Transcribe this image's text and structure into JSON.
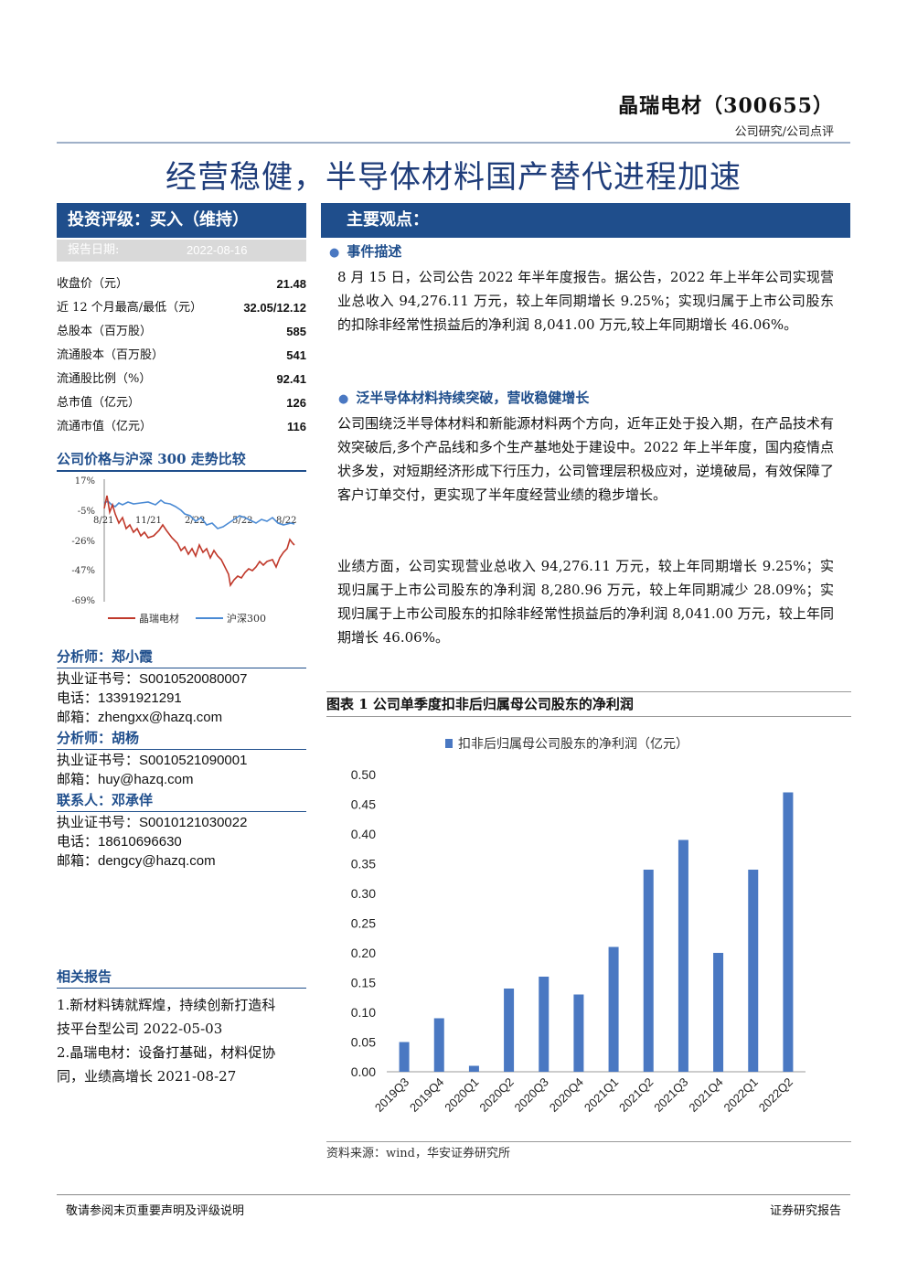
{
  "header": {
    "company": "晶瑞电材（300655）",
    "subtype": "公司研究/公司点评",
    "headline": "经营稳健，半导体材料国产替代进程加速"
  },
  "rating": {
    "label": "投资评级：买入（维持）",
    "date_label": "报告日期:",
    "date_value": "2022-08-16"
  },
  "stats": [
    {
      "label": "收盘价（元）",
      "value": "21.48"
    },
    {
      "label": "近 12 个月最高/最低（元）",
      "value": "32.05/12.12"
    },
    {
      "label": "总股本（百万股）",
      "value": "585"
    },
    {
      "label": "流通股本（百万股）",
      "value": "541"
    },
    {
      "label": "流通股比例（%）",
      "value": "92.41"
    },
    {
      "label": "总市值（亿元）",
      "value": "126"
    },
    {
      "label": "流通市值（亿元）",
      "value": "116"
    }
  ],
  "price_chart": {
    "title": "公司价格与沪深 300 走势比较",
    "y_ticks": [
      "17%",
      "-5%",
      "-26%",
      "-47%",
      "-69%"
    ],
    "x_ticks": [
      "8/21",
      "11/21",
      "2/22",
      "5/22",
      "8/22"
    ],
    "legend": [
      "晶瑞电材",
      "沪深300"
    ],
    "colors": {
      "stock": "#c0392b",
      "index": "#4a8ad4"
    }
  },
  "analysts": [
    {
      "title": "分析师：郑小霞",
      "lines": [
        "执业证书号：S0010520080007",
        "电话：13391921291",
        "邮箱：zhengxx@hazq.com"
      ]
    },
    {
      "title": "分析师：胡杨",
      "lines": [
        "执业证书号：S0010521090001",
        "邮箱：huy@hazq.com"
      ]
    },
    {
      "title": "联系人：邓承佯",
      "lines": [
        "执业证书号：S0010121030022",
        "电话：18610696630",
        "邮箱：dengcy@hazq.com"
      ]
    }
  ],
  "related": {
    "title": "相关报告",
    "lines": [
      "1.新材料铸就辉煌，持续创新打造科",
      "技平台型公司 2022-05-03",
      "2.晶瑞电材：设备打基础，材料促协",
      "同，业绩高增长 2021-08-27"
    ]
  },
  "main": {
    "title": "主要观点：",
    "sections": [
      {
        "heading": "事件描述",
        "paragraphs": [
          "8 月 15 日，公司公告 2022 年半年度报告。据公告，2022 年上半年公司实现营业总收入 94,276.11 万元，较上年同期增长 9.25%；实现归属于上市公司股东的扣除非经常性损益后的净利润 8,041.00 万元,较上年同期增长 46.06%。"
        ]
      },
      {
        "heading": "泛半导体材料持续突破，营收稳健增长",
        "paragraphs": [
          "公司围绕泛半导体材料和新能源材料两个方向，近年正处于投入期，在产品技术有效突破后,多个产品线和多个生产基地处于建设中。2022 年上半年度，国内疫情点状多发，对短期经济形成下行压力，公司管理层积极应对，逆境破局，有效保障了客户订单交付，更实现了半年度经营业绩的稳步增长。",
          "业绩方面，公司实现营业总收入 94,276.11 万元，较上年同期增长 9.25%；实现归属于上市公司股东的净利润 8,280.96 万元，较上年同期减少 28.09%；实现归属于上市公司股东的扣除非经常性损益后的净利润 8,041.00 万元，较上年同期增长 46.06%。"
        ]
      }
    ]
  },
  "figure": {
    "title": "图表 1 公司单季度扣非后归属母公司股东的净利润",
    "source": "资料来源：wind，华安证券研究所"
  },
  "chart_data": {
    "type": "bar",
    "categories": [
      "2019Q3",
      "2019Q4",
      "2020Q1",
      "2020Q2",
      "2020Q3",
      "2020Q4",
      "2021Q1",
      "2021Q2",
      "2021Q3",
      "2021Q4",
      "2022Q1",
      "2022Q2"
    ],
    "series": [
      {
        "name": "扣非后归属母公司股东的净利润（亿元）",
        "values": [
          0.05,
          0.09,
          0.01,
          0.14,
          0.16,
          0.13,
          0.21,
          0.34,
          0.39,
          0.2,
          0.34,
          0.47
        ]
      }
    ],
    "y_ticks": [
      "0.00",
      "0.05",
      "0.10",
      "0.15",
      "0.20",
      "0.25",
      "0.30",
      "0.35",
      "0.40",
      "0.45",
      "0.50"
    ],
    "ylim": [
      0,
      0.5
    ],
    "color": "#4a78c2",
    "legend": "top",
    "grid": false
  },
  "footer": {
    "left": "敬请参阅末页重要声明及评级说明",
    "right": "证券研究报告"
  }
}
